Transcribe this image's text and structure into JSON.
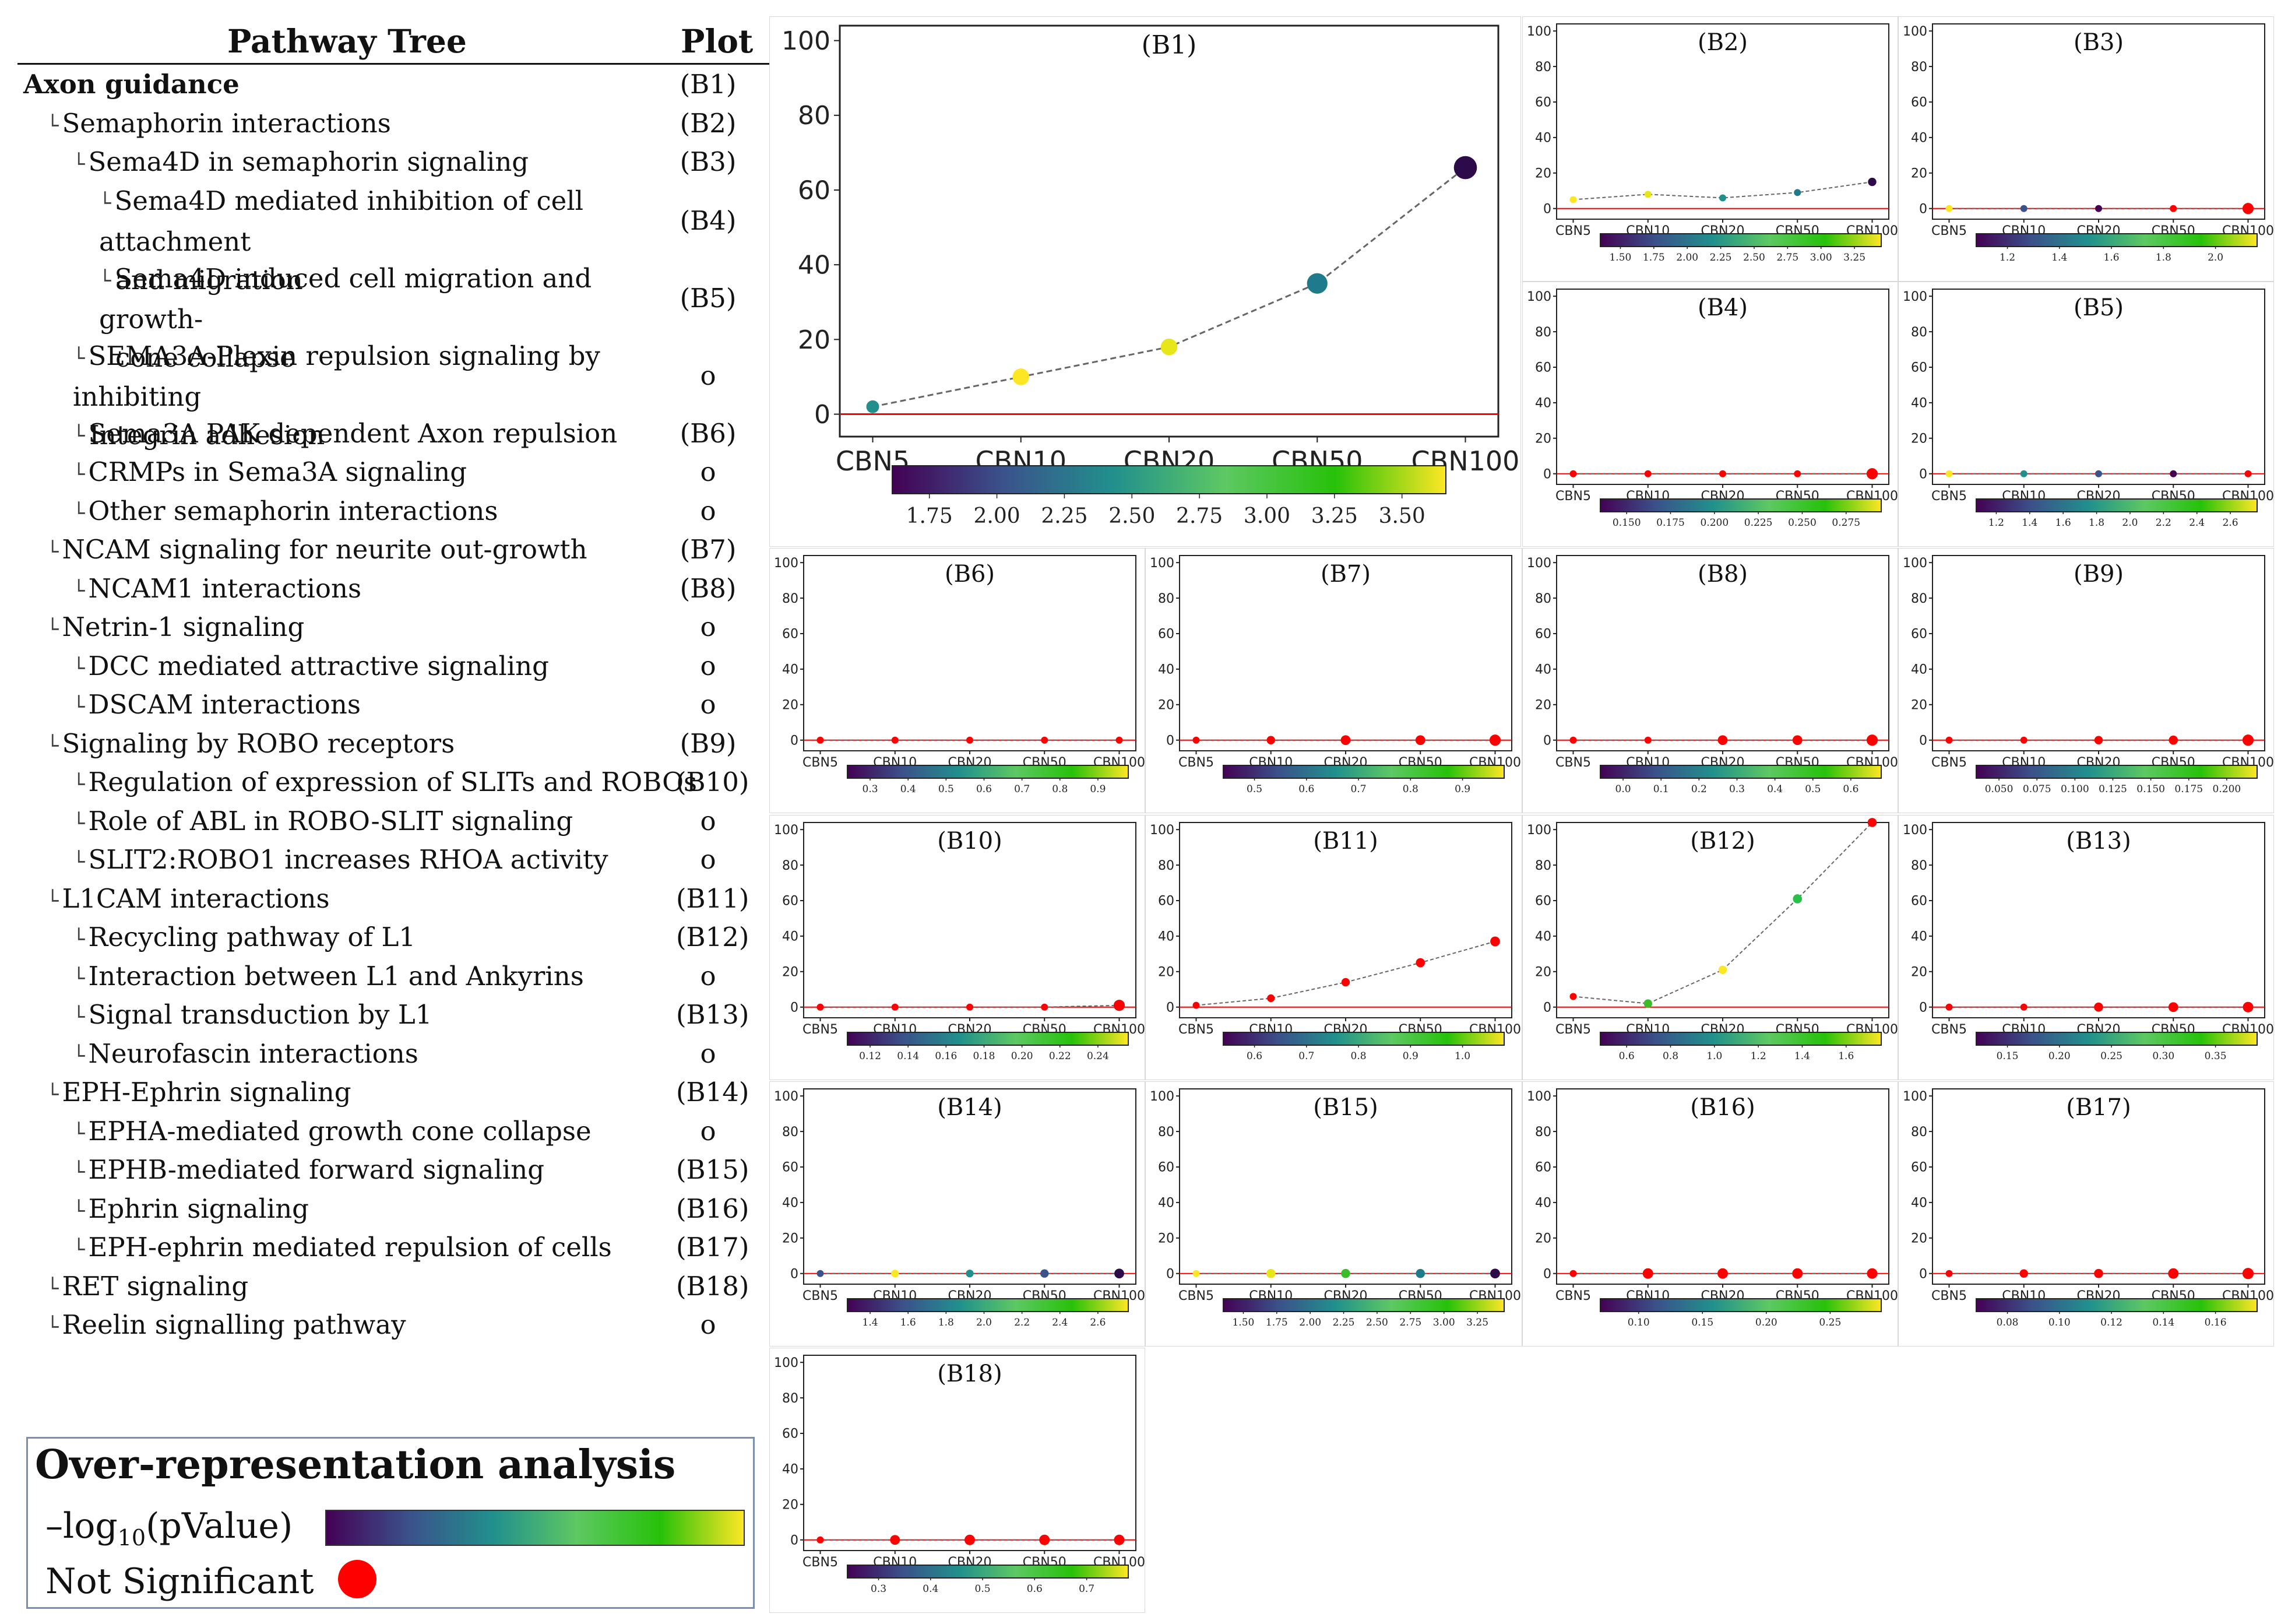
{
  "tree": {
    "header": {
      "title": "Pathway Tree",
      "plot": "Plot"
    },
    "rows": [
      {
        "label": "Axon guidance",
        "plot": "(B1)",
        "level": 0,
        "bold": true,
        "lines": 1
      },
      {
        "label": "Semaphorin interactions",
        "plot": "(B2)",
        "level": 1,
        "lines": 1
      },
      {
        "label": "Sema4D in semaphorin signaling",
        "plot": "(B3)",
        "level": 2,
        "lines": 1
      },
      {
        "label": "Sema4D mediated inhibition of cell attachment",
        "label2": "and migration",
        "plot": "(B4)",
        "level": 3,
        "lines": 2
      },
      {
        "label": "Sema4D induced cell migration and growth-",
        "label2": "cone collapse",
        "plot": "(B5)",
        "level": 3,
        "lines": 2
      },
      {
        "label": "SEMA3A-Plexin repulsion signaling by inhibiting",
        "label2": "Integrin adhesion",
        "plot": "o",
        "level": 2,
        "lines": 2
      },
      {
        "label": "Sema3A PAK dependent Axon repulsion",
        "plot": "(B6)",
        "level": 2,
        "lines": 1
      },
      {
        "label": "CRMPs in Sema3A signaling",
        "plot": "o",
        "level": 2,
        "lines": 1
      },
      {
        "label": "Other semaphorin interactions",
        "plot": "o",
        "level": 2,
        "lines": 1
      },
      {
        "label": "NCAM signaling for neurite out-growth",
        "plot": "(B7)",
        "level": 1,
        "lines": 1
      },
      {
        "label": "NCAM1 interactions",
        "plot": "(B8)",
        "level": 2,
        "lines": 1
      },
      {
        "label": "Netrin-1 signaling",
        "plot": "o",
        "level": 1,
        "lines": 1
      },
      {
        "label": "DCC mediated attractive signaling",
        "plot": "o",
        "level": 2,
        "lines": 1
      },
      {
        "label": "DSCAM interactions",
        "plot": "o",
        "level": 2,
        "lines": 1
      },
      {
        "label": "Signaling by ROBO receptors",
        "plot": "(B9)",
        "level": 1,
        "lines": 1
      },
      {
        "label": "Regulation of expression of SLITs and ROBOs",
        "plot": "(B10)",
        "level": 2,
        "lines": 1
      },
      {
        "label": "Role of ABL in ROBO-SLIT signaling",
        "plot": "o",
        "level": 2,
        "lines": 1
      },
      {
        "label": "SLIT2:ROBO1 increases RHOA activity",
        "plot": "o",
        "level": 2,
        "lines": 1
      },
      {
        "label": "L1CAM interactions",
        "plot": "(B11)",
        "level": 1,
        "lines": 1
      },
      {
        "label": "Recycling pathway of L1",
        "plot": "(B12)",
        "level": 2,
        "lines": 1
      },
      {
        "label": "Interaction between L1 and Ankyrins",
        "plot": "o",
        "level": 2,
        "lines": 1
      },
      {
        "label": "Signal transduction by L1",
        "plot": "(B13)",
        "level": 2,
        "lines": 1
      },
      {
        "label": "Neurofascin interactions",
        "plot": "o",
        "level": 2,
        "lines": 1
      },
      {
        "label": "EPH-Ephrin signaling",
        "plot": "(B14)",
        "level": 1,
        "lines": 1
      },
      {
        "label": "EPHA-mediated growth cone collapse",
        "plot": "o",
        "level": 2,
        "lines": 1
      },
      {
        "label": "EPHB-mediated forward signaling",
        "plot": "(B15)",
        "level": 2,
        "lines": 1
      },
      {
        "label": "Ephrin signaling",
        "plot": "(B16)",
        "level": 2,
        "lines": 1
      },
      {
        "label": "EPH-ephrin mediated repulsion of cells",
        "plot": "(B17)",
        "level": 2,
        "lines": 1
      },
      {
        "label": "RET signaling",
        "plot": "(B18)",
        "level": 1,
        "lines": 1
      },
      {
        "label": "Reelin signalling pathway",
        "plot": "o",
        "level": 1,
        "lines": 1
      }
    ]
  },
  "legend": {
    "title": "Over-representation analysis",
    "gradient_label": "–log",
    "gradient_sub": "10",
    "gradient_tail": "(pValue)",
    "ns_label": "Not Significant",
    "colors": [
      "#440154",
      "#3b528b",
      "#21908d",
      "#5dc863",
      "#27c10a",
      "#fde725"
    ],
    "ns_color": "#ff0000"
  },
  "chart_data": [
    {
      "id": "B1",
      "title": "(B1)",
      "type": "line",
      "categories": [
        "CBN5",
        "CBN10",
        "CBN20",
        "CBN50",
        "CBN100"
      ],
      "values": [
        2,
        10,
        18,
        35,
        66
      ],
      "ylim": [
        0,
        100
      ],
      "yticks": [
        0,
        20,
        40,
        60,
        80,
        100
      ],
      "point_colors": [
        "#21908d",
        "#fde725",
        "#e6e619",
        "#1f7a8c",
        "#2d0a4a"
      ],
      "point_sizes": [
        1,
        1.3,
        1.3,
        1.6,
        1.8
      ],
      "colorbar": {
        "ticks": [
          "1.75",
          "2.00",
          "2.25",
          "2.50",
          "2.75",
          "3.00",
          "3.25",
          "3.50"
        ]
      }
    },
    {
      "id": "B2",
      "title": "(B2)",
      "type": "line",
      "categories": [
        "CBN5",
        "CBN10",
        "CBN20",
        "CBN50",
        "CBN100"
      ],
      "values": [
        5,
        8,
        6,
        9,
        15
      ],
      "ylim": [
        0,
        100
      ],
      "yticks": [
        0,
        20,
        40,
        60,
        80,
        100
      ],
      "point_colors": [
        "#fde725",
        "#e6e619",
        "#21908d",
        "#1f7a8c",
        "#2d0a4a"
      ],
      "point_sizes": [
        1,
        1,
        1,
        1,
        1.2
      ],
      "colorbar": {
        "ticks": [
          "1.50",
          "1.75",
          "2.00",
          "2.25",
          "2.50",
          "2.75",
          "3.00",
          "3.25"
        ]
      }
    },
    {
      "id": "B3",
      "title": "(B3)",
      "type": "line",
      "categories": [
        "CBN5",
        "CBN10",
        "CBN20",
        "CBN50",
        "CBN100"
      ],
      "values": [
        0,
        0,
        0,
        0,
        0
      ],
      "ylim": [
        0,
        100
      ],
      "yticks": [
        0,
        20,
        40,
        60,
        80,
        100
      ],
      "point_colors": [
        "#fde725",
        "#3b528b",
        "#440154",
        "#ff0000",
        "#ff0000"
      ],
      "point_sizes": [
        1,
        1,
        1,
        1,
        1.6
      ],
      "colorbar": {
        "ticks": [
          "1.2",
          "1.4",
          "1.6",
          "1.8",
          "2.0"
        ]
      }
    },
    {
      "id": "B4",
      "title": "(B4)",
      "type": "line",
      "categories": [
        "CBN5",
        "CBN10",
        "CBN20",
        "CBN50",
        "CBN100"
      ],
      "values": [
        0,
        0,
        0,
        0,
        0
      ],
      "ylim": [
        0,
        100
      ],
      "yticks": [
        0,
        20,
        40,
        60,
        80,
        100
      ],
      "point_colors": [
        "#ff0000",
        "#ff0000",
        "#ff0000",
        "#ff0000",
        "#ff0000"
      ],
      "point_sizes": [
        1,
        1,
        1,
        1,
        1.6
      ],
      "colorbar": {
        "ticks": [
          "0.150",
          "0.175",
          "0.200",
          "0.225",
          "0.250",
          "0.275"
        ]
      }
    },
    {
      "id": "B5",
      "title": "(B5)",
      "type": "line",
      "categories": [
        "CBN5",
        "CBN10",
        "CBN20",
        "CBN50",
        "CBN100"
      ],
      "values": [
        0,
        0,
        0,
        0,
        0
      ],
      "ylim": [
        0,
        100
      ],
      "yticks": [
        0,
        20,
        40,
        60,
        80,
        100
      ],
      "point_colors": [
        "#fde725",
        "#21908d",
        "#3b528b",
        "#440154",
        "#ff0000"
      ],
      "point_sizes": [
        1,
        1,
        1,
        1,
        1
      ],
      "colorbar": {
        "ticks": [
          "1.2",
          "1.4",
          "1.6",
          "1.8",
          "2.0",
          "2.2",
          "2.4",
          "2.6"
        ]
      }
    },
    {
      "id": "B6",
      "title": "(B6)",
      "type": "line",
      "categories": [
        "CBN5",
        "CBN10",
        "CBN20",
        "CBN50",
        "CBN100"
      ],
      "values": [
        0,
        0,
        0,
        0,
        0
      ],
      "ylim": [
        0,
        100
      ],
      "yticks": [
        0,
        20,
        40,
        60,
        80,
        100
      ],
      "point_colors": [
        "#ff0000",
        "#ff0000",
        "#ff0000",
        "#ff0000",
        "#ff0000"
      ],
      "point_sizes": [
        1,
        1,
        1,
        1,
        1
      ],
      "colorbar": {
        "ticks": [
          "0.3",
          "0.4",
          "0.5",
          "0.6",
          "0.7",
          "0.8",
          "0.9"
        ]
      }
    },
    {
      "id": "B7",
      "title": "(B7)",
      "type": "line",
      "categories": [
        "CBN5",
        "CBN10",
        "CBN20",
        "CBN50",
        "CBN100"
      ],
      "values": [
        0,
        0,
        0,
        0,
        0
      ],
      "ylim": [
        0,
        100
      ],
      "yticks": [
        0,
        20,
        40,
        60,
        80,
        100
      ],
      "point_colors": [
        "#ff0000",
        "#ff0000",
        "#ff0000",
        "#ff0000",
        "#ff0000"
      ],
      "point_sizes": [
        1,
        1.2,
        1.4,
        1.4,
        1.6
      ],
      "colorbar": {
        "ticks": [
          "0.5",
          "0.6",
          "0.7",
          "0.8",
          "0.9"
        ]
      }
    },
    {
      "id": "B8",
      "title": "(B8)",
      "type": "line",
      "categories": [
        "CBN5",
        "CBN10",
        "CBN20",
        "CBN50",
        "CBN100"
      ],
      "values": [
        0,
        0,
        0,
        0,
        0
      ],
      "ylim": [
        0,
        100
      ],
      "yticks": [
        0,
        20,
        40,
        60,
        80,
        100
      ],
      "point_colors": [
        "#ff0000",
        "#ff0000",
        "#ff0000",
        "#ff0000",
        "#ff0000"
      ],
      "point_sizes": [
        1,
        1,
        1.4,
        1.4,
        1.6
      ],
      "colorbar": {
        "ticks": [
          "0.0",
          "0.1",
          "0.2",
          "0.3",
          "0.4",
          "0.5",
          "0.6"
        ]
      }
    },
    {
      "id": "B9",
      "title": "(B9)",
      "type": "line",
      "categories": [
        "CBN5",
        "CBN10",
        "CBN20",
        "CBN50",
        "CBN100"
      ],
      "values": [
        0,
        0,
        0,
        0,
        0
      ],
      "ylim": [
        0,
        100
      ],
      "yticks": [
        0,
        20,
        40,
        60,
        80,
        100
      ],
      "point_colors": [
        "#ff0000",
        "#ff0000",
        "#ff0000",
        "#ff0000",
        "#ff0000"
      ],
      "point_sizes": [
        1,
        1,
        1.2,
        1.3,
        1.6
      ],
      "colorbar": {
        "ticks": [
          "0.050",
          "0.075",
          "0.100",
          "0.125",
          "0.150",
          "0.175",
          "0.200"
        ]
      }
    },
    {
      "id": "B10",
      "title": "(B10)",
      "type": "line",
      "categories": [
        "CBN5",
        "CBN10",
        "CBN20",
        "CBN50",
        "CBN100"
      ],
      "values": [
        0,
        0,
        0,
        0,
        1
      ],
      "ylim": [
        0,
        100
      ],
      "yticks": [
        0,
        20,
        40,
        60,
        80,
        100
      ],
      "point_colors": [
        "#ff0000",
        "#ff0000",
        "#ff0000",
        "#ff0000",
        "#ff0000"
      ],
      "point_sizes": [
        1,
        1,
        1,
        1,
        1.6
      ],
      "colorbar": {
        "ticks": [
          "0.12",
          "0.14",
          "0.16",
          "0.18",
          "0.20",
          "0.22",
          "0.24"
        ]
      }
    },
    {
      "id": "B11",
      "title": "(B11)",
      "type": "line",
      "categories": [
        "CBN5",
        "CBN10",
        "CBN20",
        "CBN50",
        "CBN100"
      ],
      "values": [
        1,
        5,
        14,
        25,
        37
      ],
      "ylim": [
        0,
        100
      ],
      "yticks": [
        0,
        20,
        40,
        60,
        80,
        100
      ],
      "point_colors": [
        "#ff0000",
        "#ff0000",
        "#ff0000",
        "#ff0000",
        "#ff0000"
      ],
      "point_sizes": [
        1,
        1.1,
        1.2,
        1.3,
        1.4
      ],
      "colorbar": {
        "ticks": [
          "0.6",
          "0.7",
          "0.8",
          "0.9",
          "1.0"
        ]
      }
    },
    {
      "id": "B12",
      "title": "(B12)",
      "type": "line",
      "categories": [
        "CBN5",
        "CBN10",
        "CBN20",
        "CBN50",
        "CBN100"
      ],
      "values": [
        6,
        2,
        21,
        61,
        106
      ],
      "ylim": [
        0,
        100
      ],
      "yticks": [
        0,
        20,
        40,
        60,
        80,
        100
      ],
      "point_colors": [
        "#ff0000",
        "#3bbd2a",
        "#fde725",
        "#27c14a",
        "#ff0000"
      ],
      "point_sizes": [
        1,
        1.2,
        1.2,
        1.3,
        1.3
      ],
      "colorbar": {
        "ticks": [
          "0.6",
          "0.8",
          "1.0",
          "1.2",
          "1.4",
          "1.6"
        ]
      }
    },
    {
      "id": "B13",
      "title": "(B13)",
      "type": "line",
      "categories": [
        "CBN5",
        "CBN10",
        "CBN20",
        "CBN50",
        "CBN100"
      ],
      "values": [
        0,
        0,
        0,
        0,
        0
      ],
      "ylim": [
        0,
        100
      ],
      "yticks": [
        0,
        20,
        40,
        60,
        80,
        100
      ],
      "point_colors": [
        "#ff0000",
        "#ff0000",
        "#ff0000",
        "#ff0000",
        "#ff0000"
      ],
      "point_sizes": [
        1,
        1,
        1.3,
        1.4,
        1.5
      ],
      "colorbar": {
        "ticks": [
          "0.15",
          "0.20",
          "0.25",
          "0.30",
          "0.35"
        ]
      }
    },
    {
      "id": "B14",
      "title": "(B14)",
      "type": "line",
      "categories": [
        "CBN5",
        "CBN10",
        "CBN20",
        "CBN50",
        "CBN100"
      ],
      "values": [
        0,
        0,
        0,
        0,
        0
      ],
      "ylim": [
        0,
        100
      ],
      "yticks": [
        0,
        20,
        40,
        60,
        80,
        100
      ],
      "point_colors": [
        "#3b528b",
        "#fde725",
        "#21908d",
        "#3b528b",
        "#2d0a4a"
      ],
      "point_sizes": [
        1,
        1.1,
        1.1,
        1.2,
        1.4
      ],
      "colorbar": {
        "ticks": [
          "1.4",
          "1.6",
          "1.8",
          "2.0",
          "2.2",
          "2.4",
          "2.6"
        ]
      }
    },
    {
      "id": "B15",
      "title": "(B15)",
      "type": "line",
      "categories": [
        "CBN5",
        "CBN10",
        "CBN20",
        "CBN50",
        "CBN100"
      ],
      "values": [
        0,
        0,
        0,
        0,
        0
      ],
      "ylim": [
        0,
        100
      ],
      "yticks": [
        0,
        20,
        40,
        60,
        80,
        100
      ],
      "point_colors": [
        "#fde725",
        "#e6e619",
        "#3bbd2a",
        "#1f7a8c",
        "#2d0a4a"
      ],
      "point_sizes": [
        1,
        1.3,
        1.3,
        1.3,
        1.4
      ],
      "colorbar": {
        "ticks": [
          "1.50",
          "1.75",
          "2.00",
          "2.25",
          "2.50",
          "2.75",
          "3.00",
          "3.25"
        ]
      }
    },
    {
      "id": "B16",
      "title": "(B16)",
      "type": "line",
      "categories": [
        "CBN5",
        "CBN10",
        "CBN20",
        "CBN50",
        "CBN100"
      ],
      "values": [
        0,
        0,
        0,
        0,
        0
      ],
      "ylim": [
        0,
        100
      ],
      "yticks": [
        0,
        20,
        40,
        60,
        80,
        100
      ],
      "point_colors": [
        "#ff0000",
        "#ff0000",
        "#ff0000",
        "#ff0000",
        "#ff0000"
      ],
      "point_sizes": [
        1,
        1.5,
        1.5,
        1.5,
        1.5
      ],
      "colorbar": {
        "ticks": [
          "0.10",
          "0.15",
          "0.20",
          "0.25"
        ]
      }
    },
    {
      "id": "B17",
      "title": "(B17)",
      "type": "line",
      "categories": [
        "CBN5",
        "CBN10",
        "CBN20",
        "CBN50",
        "CBN100"
      ],
      "values": [
        0,
        0,
        0,
        0,
        0
      ],
      "ylim": [
        0,
        100
      ],
      "yticks": [
        0,
        20,
        40,
        60,
        80,
        100
      ],
      "point_colors": [
        "#ff0000",
        "#ff0000",
        "#ff0000",
        "#ff0000",
        "#ff0000"
      ],
      "point_sizes": [
        1,
        1.2,
        1.3,
        1.5,
        1.6
      ],
      "colorbar": {
        "ticks": [
          "0.08",
          "0.10",
          "0.12",
          "0.14",
          "0.16"
        ]
      }
    },
    {
      "id": "B18",
      "title": "(B18)",
      "type": "line",
      "categories": [
        "CBN5",
        "CBN10",
        "CBN20",
        "CBN50",
        "CBN100"
      ],
      "values": [
        0,
        0,
        0,
        0,
        0
      ],
      "ylim": [
        0,
        100
      ],
      "yticks": [
        0,
        20,
        40,
        60,
        80,
        100
      ],
      "point_colors": [
        "#ff0000",
        "#ff0000",
        "#ff0000",
        "#ff0000",
        "#ff0000"
      ],
      "point_sizes": [
        1,
        1.4,
        1.5,
        1.5,
        1.5
      ],
      "colorbar": {
        "ticks": [
          "0.3",
          "0.4",
          "0.5",
          "0.6",
          "0.7"
        ]
      }
    }
  ]
}
